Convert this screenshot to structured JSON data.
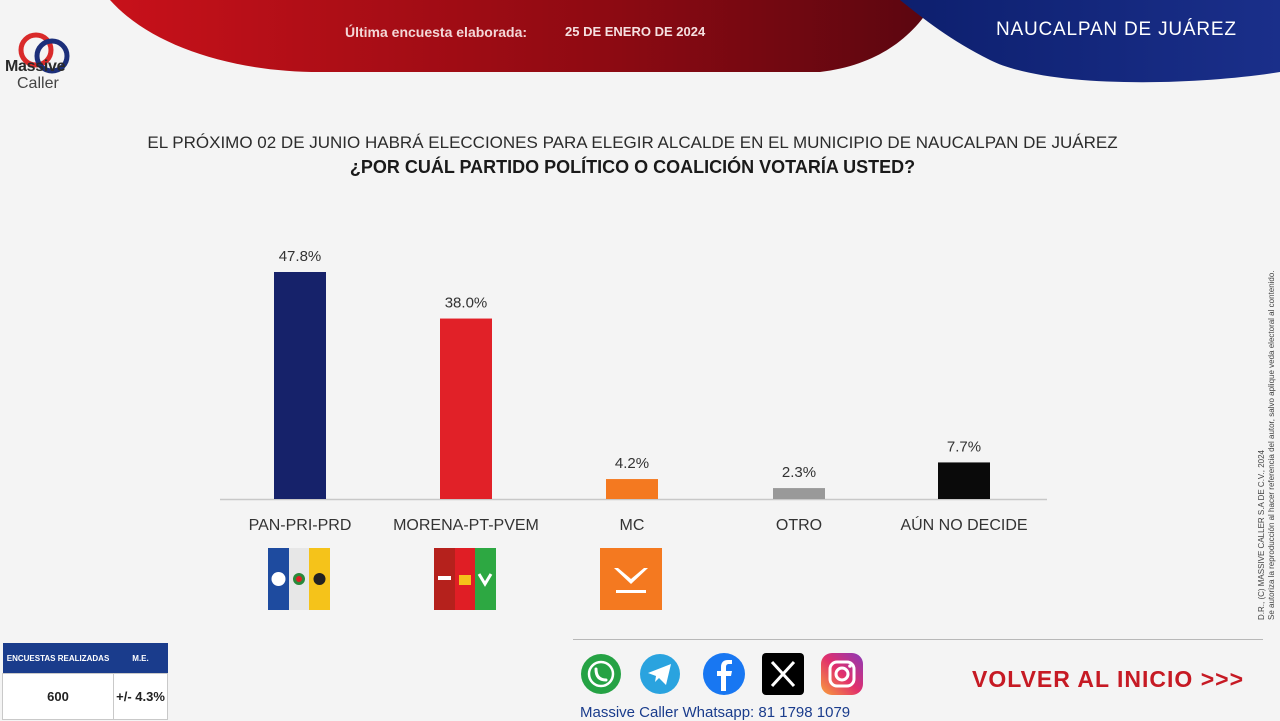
{
  "brand": {
    "line1": "Massive",
    "line2": "Caller"
  },
  "header": {
    "survey_label": "Última encuesta elaborada:",
    "survey_date": "25 DE ENERO DE 2024",
    "region": "NAUCALPAN  DE  JUÁREZ"
  },
  "question": {
    "line1": "EL PRÓXIMO 02 DE JUNIO HABRÁ ELECCIONES PARA ELEGIR ALCALDE EN EL MUNICIPIO DE NAUCALPAN DE JUÁREZ",
    "line2": "¿POR CUÁL PARTIDO POLÍTICO O COALICIÓN VOTARÍA USTED?"
  },
  "chart_data": {
    "type": "bar",
    "title": "",
    "categories": [
      "PAN-PRI-PRD",
      "MORENA-PT-PVEM",
      "MC",
      "OTRO",
      "AÚN NO DECIDE"
    ],
    "values": [
      47.8,
      38.0,
      4.2,
      2.3,
      7.7
    ],
    "value_labels": [
      "47.8%",
      "38.0%",
      "4.2%",
      "2.3%",
      "7.7%"
    ],
    "colors": [
      "#16226a",
      "#e12128",
      "#f47920",
      "#999999",
      "#0a0a0a"
    ],
    "ylim": [
      0,
      47.8
    ],
    "grid": false,
    "legend": "none"
  },
  "party_logos": [
    {
      "icon": "pan-pri-prd-coalition-logo",
      "colors": [
        "#1e4b9f",
        "#e7e7e7",
        "#f5c31a"
      ]
    },
    {
      "icon": "morena-pt-pvem-coalition-logo",
      "colors": [
        "#b5211c",
        "#e01e25",
        "#2da842"
      ]
    },
    {
      "icon": "movimiento-ciudadano-logo",
      "colors": [
        "#f47920"
      ]
    }
  ],
  "copyright": {
    "line1": "D.R., (C) MASSIVE CALLER S.A DE C.V., 2024",
    "line2": "Se autoriza la reproducción al hacer referencia del autor, salvo aplique veda electoral al contenido."
  },
  "stats": {
    "header1": "ENCUESTAS REALIZADAS",
    "header2": "M.E.",
    "value1": "600",
    "value2": "+/- 4.3%"
  },
  "social": [
    {
      "icon": "whatsapp-icon",
      "color": "#25a244"
    },
    {
      "icon": "telegram-icon",
      "color": "#2aa3df"
    },
    {
      "icon": "facebook-icon",
      "color": "#1877f2"
    },
    {
      "icon": "x-icon",
      "color": "#000000"
    },
    {
      "icon": "instagram-icon",
      "color": "#d6297a"
    }
  ],
  "footer": {
    "whatsapp_line": "Massive Caller Whatsapp: 81 1798 1079",
    "back_label": "VOLVER AL INICIO >>>"
  }
}
